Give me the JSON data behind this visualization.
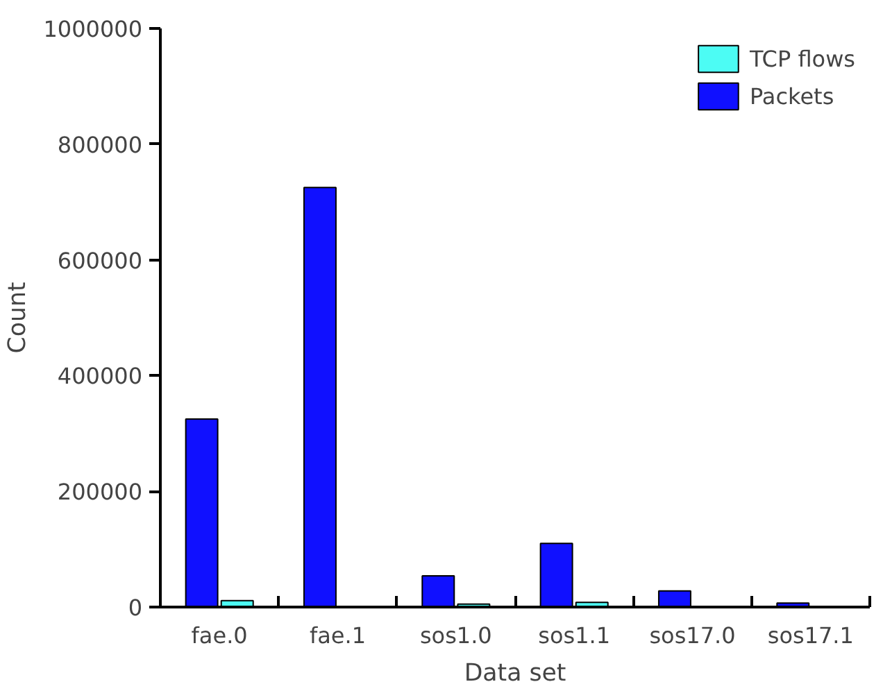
{
  "chart_data": {
    "type": "bar",
    "xlabel": "Data set",
    "ylabel": "Count",
    "categories": [
      "fae.0",
      "fae.1",
      "sos1.0",
      "sos1.1",
      "sos17.0",
      "sos17.1"
    ],
    "series": [
      {
        "name": "Packets",
        "color": "#1010ff",
        "values": [
          325000,
          725000,
          54000,
          110000,
          28000,
          7000
        ]
      },
      {
        "name": "TCP flows",
        "color": "#4cfcf4",
        "values": [
          11000,
          null,
          5000,
          8000,
          null,
          null
        ]
      }
    ],
    "ylim": [
      0,
      1000000
    ],
    "yticks": [
      0,
      200000,
      400000,
      600000,
      800000,
      1000000
    ],
    "grid": false,
    "legend": "top right"
  }
}
